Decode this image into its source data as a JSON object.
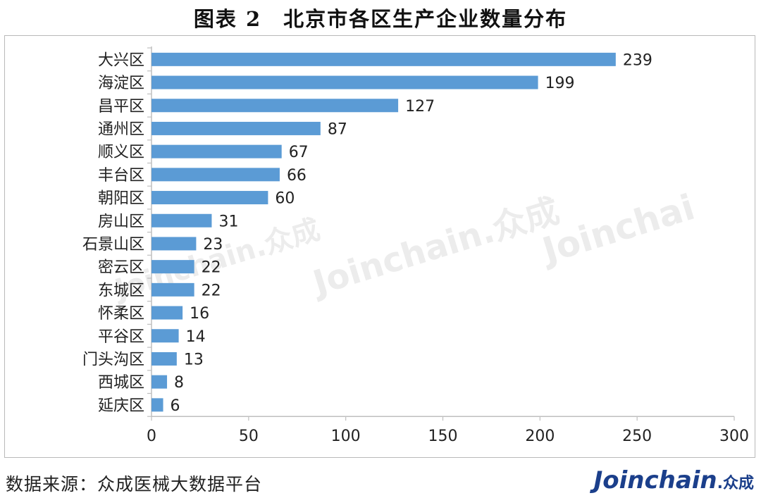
{
  "title": "图表 2　北京市各区生产企业数量分布",
  "source": "数据来源：众成医械大数据平台",
  "logo": {
    "text": "Joinchain",
    "cn": ".众成"
  },
  "watermarks": [
    "Joinchain.众成",
    "Joinchain.众成",
    "Joinchai"
  ],
  "colors": {
    "bar": "#5b9bd5",
    "axis": "#bfbfbf",
    "logo": "#1b3f8b"
  },
  "chart_data": {
    "type": "bar",
    "orientation": "horizontal",
    "categories": [
      "大兴区",
      "海淀区",
      "昌平区",
      "通州区",
      "顺义区",
      "丰台区",
      "朝阳区",
      "房山区",
      "石景山区",
      "密云区",
      "东城区",
      "怀柔区",
      "平谷区",
      "门头沟区",
      "西城区",
      "延庆区"
    ],
    "values": [
      239,
      199,
      127,
      87,
      67,
      66,
      60,
      31,
      23,
      22,
      22,
      16,
      14,
      13,
      8,
      6
    ],
    "xlim": [
      0,
      300
    ],
    "xticks": [
      0,
      50,
      100,
      150,
      200,
      250,
      300
    ],
    "data_labels": true,
    "grid": false
  }
}
